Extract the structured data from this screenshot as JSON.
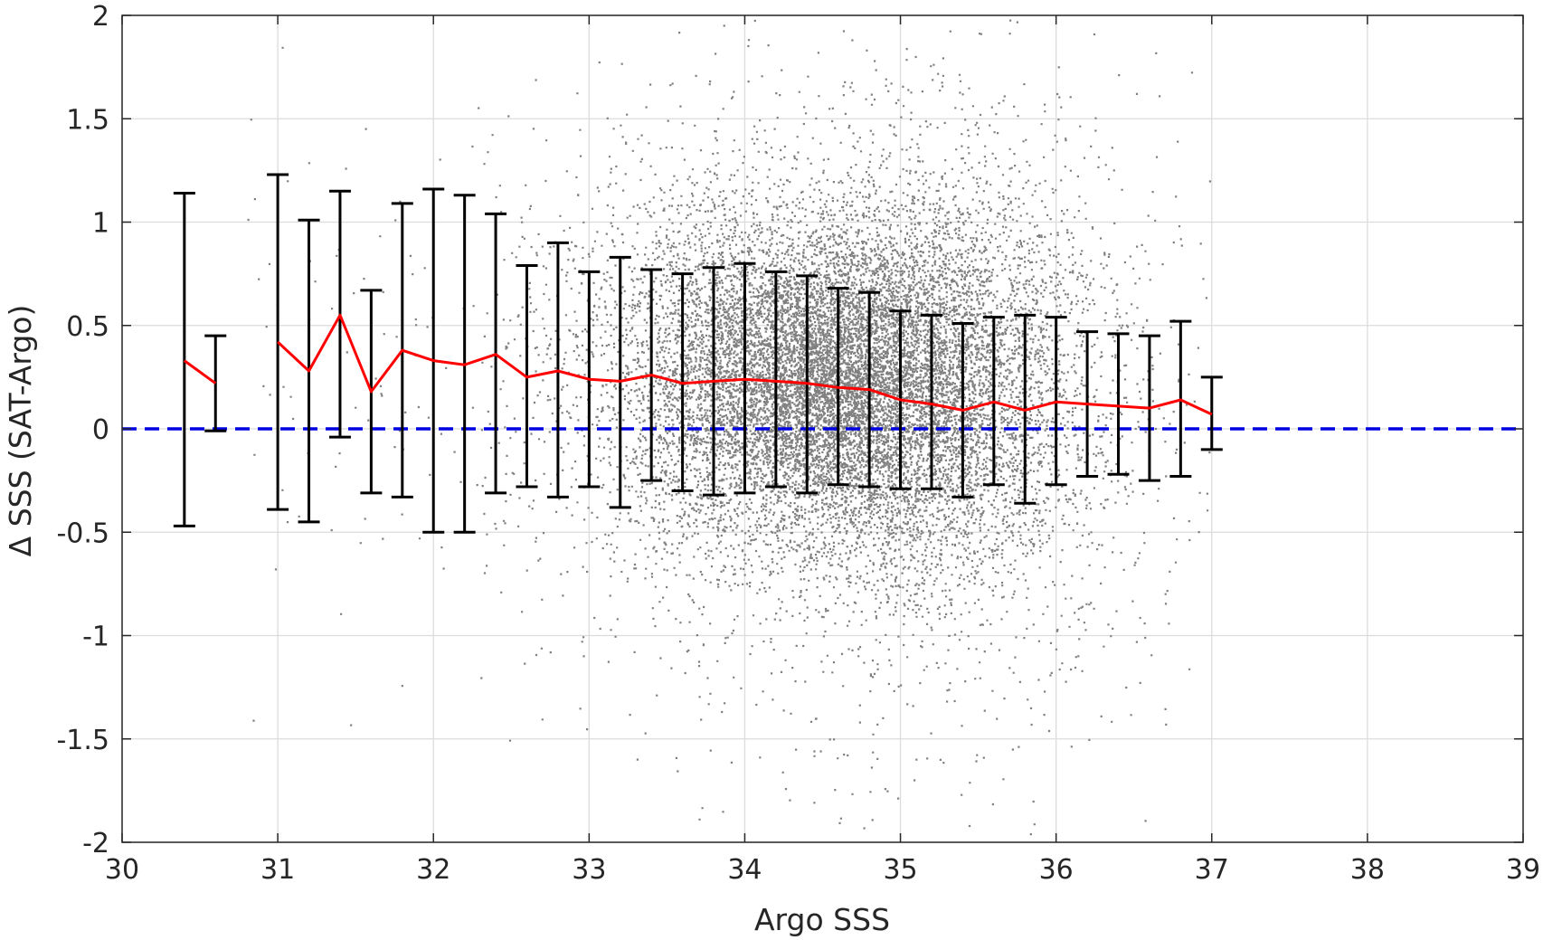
{
  "chart_data": {
    "type": "scatter",
    "title": "",
    "xlabel": "Argo SSS",
    "ylabel": "Δ SSS (SAT-Argo)",
    "xlim": [
      30,
      39
    ],
    "ylim": [
      -2,
      2
    ],
    "xticks": [
      "30",
      "31",
      "32",
      "33",
      "34",
      "35",
      "36",
      "37",
      "38",
      "39"
    ],
    "yticks": [
      "-2",
      "-1.5",
      "-1",
      "-0.5",
      "0",
      "0.5",
      "1",
      "1.5",
      "2"
    ],
    "grid": true,
    "legend": "none",
    "colors": {
      "scatter": "#808080",
      "mean_line": "#ff0000",
      "error_bars": "#000000",
      "zero_line": "#0000e0",
      "grid": "#dcdcdc",
      "axes": "#262626"
    },
    "scatter_note": "dense cloud of matchup points, centred near Argo SSS 34–35.5, spread ±1 to ±2",
    "bins": [
      {
        "x": 30.4,
        "mean": 0.33,
        "lower": -0.47,
        "upper": 1.14
      },
      {
        "x": 30.6,
        "mean": 0.22,
        "lower": -0.01,
        "upper": 0.45
      },
      {
        "x": 31.0,
        "mean": 0.42,
        "lower": -0.39,
        "upper": 1.23
      },
      {
        "x": 31.2,
        "mean": 0.28,
        "lower": -0.45,
        "upper": 1.01
      },
      {
        "x": 31.4,
        "mean": 0.55,
        "lower": -0.04,
        "upper": 1.15
      },
      {
        "x": 31.6,
        "mean": 0.18,
        "lower": -0.31,
        "upper": 0.67
      },
      {
        "x": 31.8,
        "mean": 0.38,
        "lower": -0.33,
        "upper": 1.09
      },
      {
        "x": 32.0,
        "mean": 0.33,
        "lower": -0.5,
        "upper": 1.16
      },
      {
        "x": 32.2,
        "mean": 0.31,
        "lower": -0.5,
        "upper": 1.13
      },
      {
        "x": 32.4,
        "mean": 0.36,
        "lower": -0.31,
        "upper": 1.04
      },
      {
        "x": 32.6,
        "mean": 0.25,
        "lower": -0.28,
        "upper": 0.79
      },
      {
        "x": 32.8,
        "mean": 0.28,
        "lower": -0.33,
        "upper": 0.9
      },
      {
        "x": 33.0,
        "mean": 0.24,
        "lower": -0.28,
        "upper": 0.76
      },
      {
        "x": 33.2,
        "mean": 0.23,
        "lower": -0.38,
        "upper": 0.83
      },
      {
        "x": 33.4,
        "mean": 0.26,
        "lower": -0.25,
        "upper": 0.77
      },
      {
        "x": 33.6,
        "mean": 0.22,
        "lower": -0.3,
        "upper": 0.75
      },
      {
        "x": 33.8,
        "mean": 0.23,
        "lower": -0.32,
        "upper": 0.78
      },
      {
        "x": 34.0,
        "mean": 0.24,
        "lower": -0.31,
        "upper": 0.8
      },
      {
        "x": 34.2,
        "mean": 0.23,
        "lower": -0.28,
        "upper": 0.76
      },
      {
        "x": 34.4,
        "mean": 0.22,
        "lower": -0.31,
        "upper": 0.74
      },
      {
        "x": 34.6,
        "mean": 0.2,
        "lower": -0.27,
        "upper": 0.68
      },
      {
        "x": 34.8,
        "mean": 0.19,
        "lower": -0.28,
        "upper": 0.66
      },
      {
        "x": 35.0,
        "mean": 0.14,
        "lower": -0.29,
        "upper": 0.57
      },
      {
        "x": 35.2,
        "mean": 0.12,
        "lower": -0.29,
        "upper": 0.55
      },
      {
        "x": 35.4,
        "mean": 0.09,
        "lower": -0.33,
        "upper": 0.51
      },
      {
        "x": 35.6,
        "mean": 0.13,
        "lower": -0.27,
        "upper": 0.54
      },
      {
        "x": 35.8,
        "mean": 0.09,
        "lower": -0.36,
        "upper": 0.55
      },
      {
        "x": 36.0,
        "mean": 0.13,
        "lower": -0.27,
        "upper": 0.54
      },
      {
        "x": 36.2,
        "mean": 0.12,
        "lower": -0.23,
        "upper": 0.47
      },
      {
        "x": 36.4,
        "mean": 0.11,
        "lower": -0.22,
        "upper": 0.46
      },
      {
        "x": 36.6,
        "mean": 0.1,
        "lower": -0.25,
        "upper": 0.45
      },
      {
        "x": 36.8,
        "mean": 0.14,
        "lower": -0.23,
        "upper": 0.52
      },
      {
        "x": 37.0,
        "mean": 0.07,
        "lower": -0.1,
        "upper": 0.25
      }
    ]
  }
}
